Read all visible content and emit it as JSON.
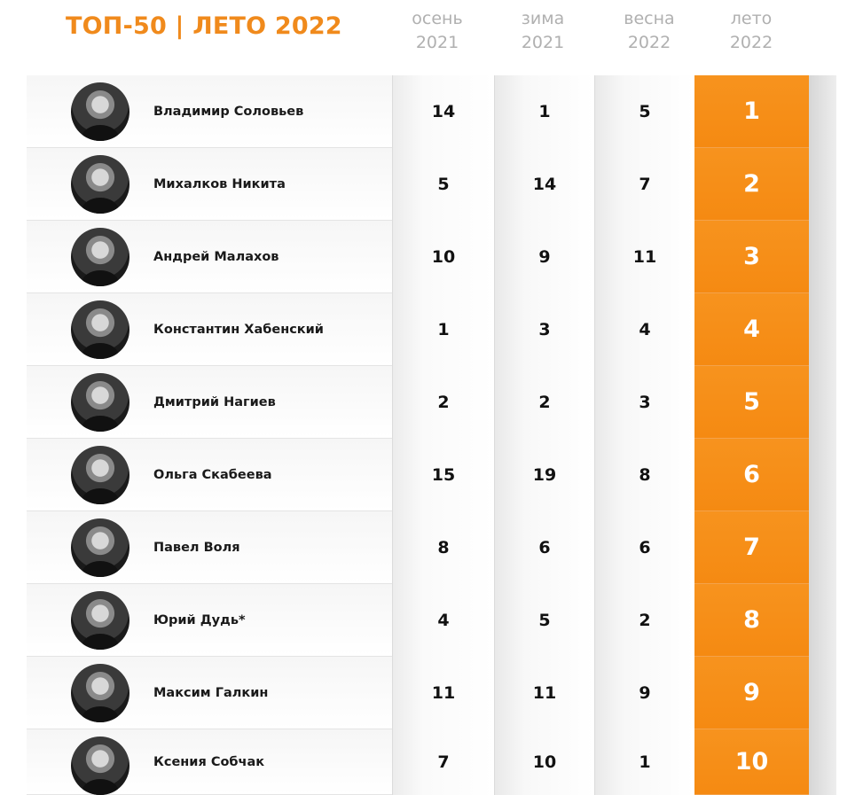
{
  "header": {
    "title": "ТОП-50 |  ЛЕТО 2022",
    "columns": [
      {
        "season": "осень",
        "year": "2021"
      },
      {
        "season": "зима",
        "year": "2021"
      },
      {
        "season": "весна",
        "year": "2022"
      },
      {
        "season": "лето",
        "year": "2022"
      }
    ]
  },
  "rows": [
    {
      "name": "Владимир Соловьев",
      "autumn_2021": "14",
      "winter_2021": "1",
      "spring_2022": "5",
      "summer_2022": "1"
    },
    {
      "name": "Михалков Никита",
      "autumn_2021": "5",
      "winter_2021": "14",
      "spring_2022": "7",
      "summer_2022": "2"
    },
    {
      "name": "Андрей Малахов",
      "autumn_2021": "10",
      "winter_2021": "9",
      "spring_2022": "11",
      "summer_2022": "3"
    },
    {
      "name": "Константин Хабенский",
      "autumn_2021": "1",
      "winter_2021": "3",
      "spring_2022": "4",
      "summer_2022": "4"
    },
    {
      "name": "Дмитрий Нагиев",
      "autumn_2021": "2",
      "winter_2021": "2",
      "spring_2022": "3",
      "summer_2022": "5"
    },
    {
      "name": "Ольга Скабеева",
      "autumn_2021": "15",
      "winter_2021": "19",
      "spring_2022": "8",
      "summer_2022": "6"
    },
    {
      "name": "Павел Воля",
      "autumn_2021": "8",
      "winter_2021": "6",
      "spring_2022": "6",
      "summer_2022": "7"
    },
    {
      "name": "Юрий Дудь*",
      "autumn_2021": "4",
      "winter_2021": "5",
      "spring_2022": "2",
      "summer_2022": "8"
    },
    {
      "name": "Максим Галкин",
      "autumn_2021": "11",
      "winter_2021": "11",
      "spring_2022": "9",
      "summer_2022": "9"
    },
    {
      "name": "Ксения Собчак",
      "autumn_2021": "7",
      "winter_2021": "10",
      "spring_2022": "1",
      "summer_2022": "10"
    }
  ],
  "colors": {
    "accent": "#f7931e",
    "title": "#f08a1c",
    "header_text": "#b0b0b0"
  }
}
